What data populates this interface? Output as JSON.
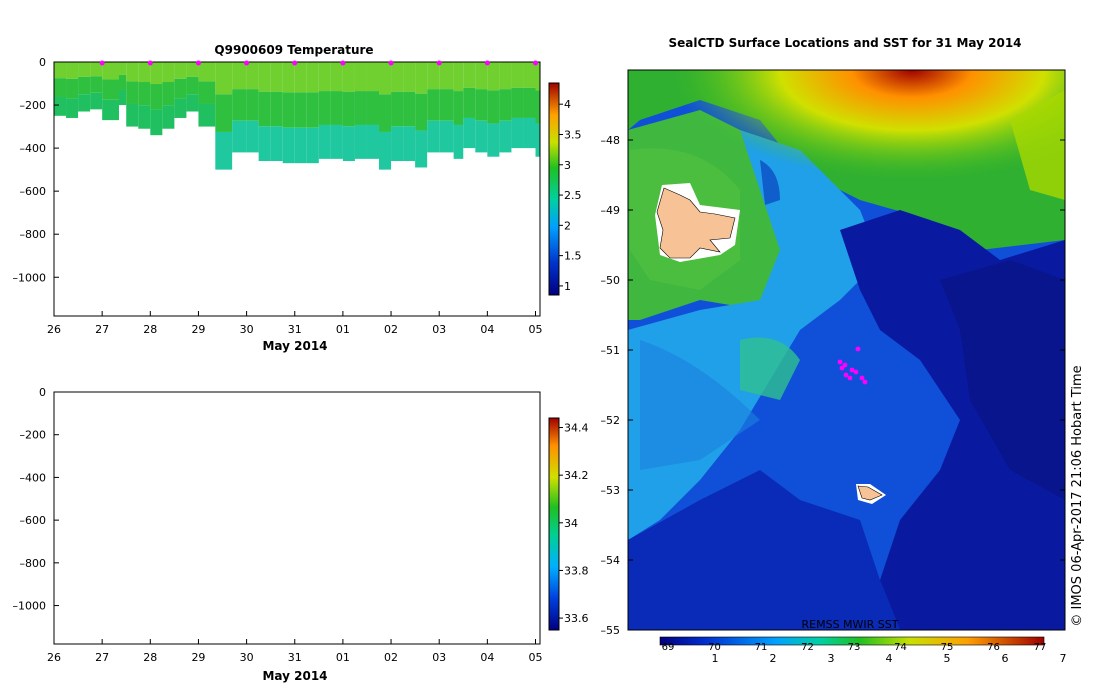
{
  "chart_data": [
    {
      "type": "heatmap",
      "title": "Q9900609  Temperature",
      "xlabel": "May 2014",
      "ylabel": "",
      "x_ticks": [
        "26",
        "27",
        "28",
        "29",
        "30",
        "31",
        "01",
        "02",
        "03",
        "04",
        "05"
      ],
      "ylim": [
        -1180,
        0
      ],
      "y_ticks": [
        0,
        -200,
        -400,
        -600,
        -800,
        -1000
      ],
      "colorbar": {
        "min": 0.85,
        "max": 4.35,
        "ticks": [
          4,
          3.5,
          3,
          2.5,
          2,
          1.5,
          1
        ]
      },
      "profile_markers": [
        "27",
        "28",
        "29",
        "30",
        "31",
        "01",
        "02",
        "03",
        "04",
        "05"
      ],
      "profiles": [
        {
          "day": 0.0,
          "depth": 250
        },
        {
          "day": 0.25,
          "depth": 260
        },
        {
          "day": 0.5,
          "depth": 230
        },
        {
          "day": 0.75,
          "depth": 220
        },
        {
          "day": 1.0,
          "depth": 270
        },
        {
          "day": 1.35,
          "depth": 200
        },
        {
          "day": 1.5,
          "depth": 300
        },
        {
          "day": 1.75,
          "depth": 310
        },
        {
          "day": 2.0,
          "depth": 340
        },
        {
          "day": 2.25,
          "depth": 310
        },
        {
          "day": 2.5,
          "depth": 260
        },
        {
          "day": 2.75,
          "depth": 230
        },
        {
          "day": 3.0,
          "depth": 300
        },
        {
          "day": 3.35,
          "depth": 500
        },
        {
          "day": 3.7,
          "depth": 420
        },
        {
          "day": 4.0,
          "depth": 420
        },
        {
          "day": 4.25,
          "depth": 460
        },
        {
          "day": 4.5,
          "depth": 460
        },
        {
          "day": 4.75,
          "depth": 470
        },
        {
          "day": 5.0,
          "depth": 470
        },
        {
          "day": 5.25,
          "depth": 470
        },
        {
          "day": 5.5,
          "depth": 450
        },
        {
          "day": 5.75,
          "depth": 450
        },
        {
          "day": 6.0,
          "depth": 460
        },
        {
          "day": 6.25,
          "depth": 450
        },
        {
          "day": 6.5,
          "depth": 450
        },
        {
          "day": 6.75,
          "depth": 500
        },
        {
          "day": 7.0,
          "depth": 460
        },
        {
          "day": 7.25,
          "depth": 460
        },
        {
          "day": 7.5,
          "depth": 490
        },
        {
          "day": 7.75,
          "depth": 420
        },
        {
          "day": 8.0,
          "depth": 420
        },
        {
          "day": 8.3,
          "depth": 450
        },
        {
          "day": 8.5,
          "depth": 400
        },
        {
          "day": 8.75,
          "depth": 420
        },
        {
          "day": 9.0,
          "depth": 440
        },
        {
          "day": 9.25,
          "depth": 420
        },
        {
          "day": 9.5,
          "depth": 400
        },
        {
          "day": 9.75,
          "depth": 400
        },
        {
          "day": 10.0,
          "depth": 440
        }
      ]
    },
    {
      "type": "heatmap",
      "title": "",
      "xlabel": "May 2014",
      "ylabel": "",
      "x_ticks": [
        "26",
        "27",
        "28",
        "29",
        "30",
        "31",
        "01",
        "02",
        "03",
        "04",
        "05"
      ],
      "ylim": [
        -1180,
        0
      ],
      "y_ticks": [
        0,
        -200,
        -400,
        -600,
        -800,
        -1000
      ],
      "colorbar": {
        "min": 33.55,
        "max": 34.44,
        "ticks": [
          "34.4",
          "34.2",
          "34",
          "33.8",
          "33.6"
        ]
      }
    },
    {
      "type": "heatmap",
      "title": "SealCTD Surface Locations and SST for 31 May 2014",
      "xlabel": "",
      "ylabel": "",
      "y_ticks": [
        "-48",
        "-49",
        "-50",
        "-51",
        "-52",
        "-53",
        "-54",
        "-55"
      ],
      "colorbar": {
        "top_ticks": [
          "69",
          "70",
          "71",
          "72",
          "73",
          "74",
          "75",
          "76",
          "77"
        ],
        "bottom_ticks": [
          "1",
          "2",
          "3",
          "4",
          "5",
          "6",
          "7"
        ]
      },
      "source_label": "REMSS MWIR SST ",
      "credit": "© IMOS 06-Apr-2017 21:06 Hobart Time"
    }
  ]
}
